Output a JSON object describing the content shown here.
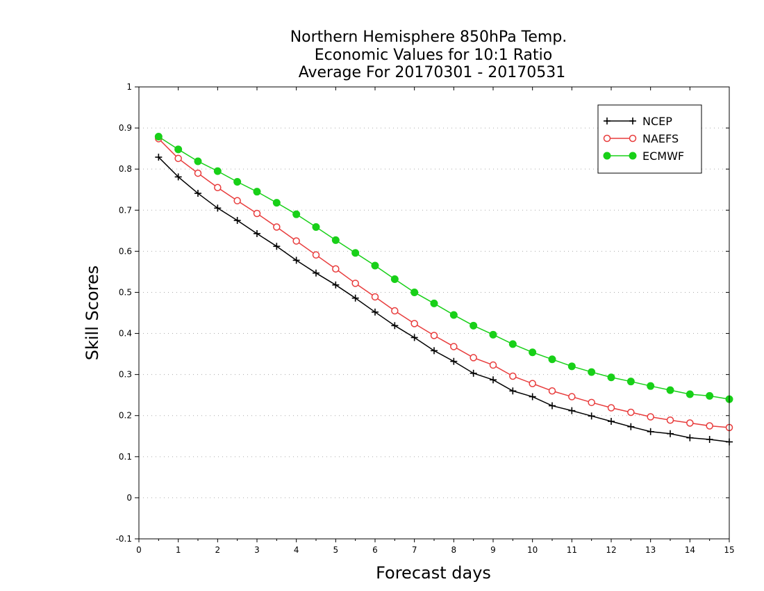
{
  "chart_data": {
    "type": "line",
    "title": [
      "Northern Hemisphere 850hPa Temp.",
      "Economic Values for 10:1 Ratio",
      "Average For 20170301 - 20170531"
    ],
    "xlabel": "Forecast days",
    "ylabel": "Skill Scores",
    "xlim": [
      0,
      15
    ],
    "ylim": [
      -0.1,
      1
    ],
    "x_ticks": [
      0,
      1,
      2,
      3,
      4,
      5,
      6,
      7,
      8,
      9,
      10,
      11,
      12,
      13,
      14,
      15
    ],
    "y_ticks": [
      -0.1,
      0,
      0.1,
      0.2,
      0.3,
      0.4,
      0.5,
      0.6,
      0.7,
      0.8,
      0.9,
      1
    ],
    "y_tick_labels": [
      "-0.1",
      "0",
      "0.1",
      "0.2",
      "0.3",
      "0.4",
      "0.5",
      "0.6",
      "0.7",
      "0.8",
      "0.9",
      "1"
    ],
    "grid": "horizontal-dotted",
    "legend_position": "top-right",
    "x": [
      0.5,
      1,
      1.5,
      2,
      2.5,
      3,
      3.5,
      4,
      4.5,
      5,
      5.5,
      6,
      6.5,
      7,
      7.5,
      8,
      8.5,
      9,
      9.5,
      10,
      10.5,
      11,
      11.5,
      12,
      12.5,
      13,
      13.5,
      14,
      14.5,
      15
    ],
    "series": [
      {
        "name": "NCEP",
        "color": "#000000",
        "marker": "plus",
        "values": [
          0.829,
          0.781,
          0.741,
          0.705,
          0.675,
          0.643,
          0.612,
          0.578,
          0.547,
          0.518,
          0.486,
          0.452,
          0.419,
          0.39,
          0.358,
          0.332,
          0.303,
          0.287,
          0.26,
          0.246,
          0.224,
          0.212,
          0.199,
          0.186,
          0.173,
          0.161,
          0.156,
          0.146,
          0.142,
          0.136
        ]
      },
      {
        "name": "NAEFS",
        "color": "#e83c3c",
        "marker": "open-circle",
        "values": [
          0.874,
          0.826,
          0.79,
          0.755,
          0.723,
          0.692,
          0.659,
          0.625,
          0.591,
          0.557,
          0.522,
          0.489,
          0.455,
          0.424,
          0.395,
          0.368,
          0.341,
          0.323,
          0.296,
          0.278,
          0.26,
          0.246,
          0.232,
          0.219,
          0.208,
          0.197,
          0.189,
          0.182,
          0.175,
          0.171
        ]
      },
      {
        "name": "ECMWF",
        "color": "#18d018",
        "marker": "filled-circle",
        "values": [
          0.879,
          0.848,
          0.819,
          0.795,
          0.769,
          0.745,
          0.718,
          0.69,
          0.659,
          0.627,
          0.596,
          0.565,
          0.532,
          0.5,
          0.473,
          0.445,
          0.419,
          0.397,
          0.374,
          0.354,
          0.337,
          0.32,
          0.306,
          0.293,
          0.283,
          0.272,
          0.262,
          0.252,
          0.248,
          0.24
        ]
      }
    ]
  }
}
